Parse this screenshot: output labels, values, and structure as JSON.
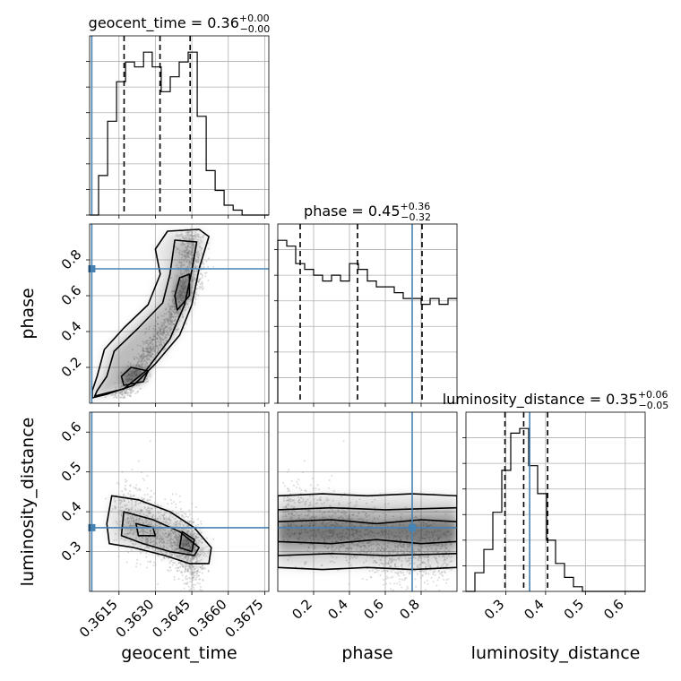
{
  "chart_data": {
    "type": "corner",
    "parameters": [
      "geocent_time",
      "phase",
      "luminosity_distance"
    ],
    "titles": [
      {
        "param": "geocent_time",
        "prefix": "geocent_time = ",
        "value": "0.36",
        "plus": "+0.00",
        "minus": "−0.00"
      },
      {
        "param": "phase",
        "prefix": "phase = ",
        "value": "0.45",
        "plus": "+0.36",
        "minus": "−0.32"
      },
      {
        "param": "luminosity_distance",
        "prefix": "luminosity_distance = ",
        "value": "0.35",
        "plus": "+0.06",
        "minus": "−0.05"
      }
    ],
    "axis_labels": {
      "geocent_time": "geocent_time",
      "phase": "phase",
      "luminosity_distance": "luminosity_distance"
    },
    "ranges": {
      "geocent_time": [
        0.36029,
        0.36767
      ],
      "phase": [
        0.0,
        1.0
      ],
      "luminosity_distance": [
        0.2,
        0.65
      ]
    },
    "ticks": {
      "geocent_time": [
        0.3615,
        0.363,
        0.3645,
        0.366,
        0.3675
      ],
      "phase": [
        0.2,
        0.4,
        0.6,
        0.8
      ],
      "luminosity_distance": [
        0.3,
        0.4,
        0.5,
        0.6
      ]
    },
    "tick_labels": {
      "geocent_time": [
        "0.3615",
        "0.3630",
        "0.3645",
        "0.3660",
        "0.3675"
      ],
      "phase": [
        "0.2",
        "0.4",
        "0.6",
        "0.8"
      ],
      "luminosity_distance": [
        "0.3",
        "0.4",
        "0.5",
        "0.6"
      ]
    },
    "truths": {
      "geocent_time": 0.36038,
      "phase": 0.75,
      "luminosity_distance": 0.36
    },
    "quantiles": {
      "geocent_time": [
        0.36171,
        0.36319,
        0.36443
      ],
      "phase": [
        0.125,
        0.445,
        0.805
      ],
      "luminosity_distance": [
        0.298,
        0.345,
        0.405
      ]
    },
    "histograms": {
      "geocent_time": {
        "edges": [
          0.36029,
          0.36066,
          0.36103,
          0.3614,
          0.36177,
          0.36214,
          0.36251,
          0.36287,
          0.36324,
          0.36361,
          0.36398,
          0.36435,
          0.36472,
          0.36509,
          0.36546,
          0.36583,
          0.3662,
          0.36657,
          0.36694,
          0.36731,
          0.36767
        ],
        "counts": [
          0,
          8,
          19,
          27,
          31,
          30,
          33,
          30,
          25,
          28,
          31,
          33,
          20,
          9,
          5,
          2,
          1,
          0,
          0,
          0
        ]
      },
      "phase": {
        "edges": [
          0.0,
          0.05,
          0.1,
          0.15,
          0.2,
          0.25,
          0.3,
          0.35,
          0.4,
          0.45,
          0.5,
          0.55,
          0.6,
          0.65,
          0.7,
          0.75,
          0.8,
          0.85,
          0.9,
          0.95,
          1.0
        ],
        "counts": [
          28,
          27,
          24,
          23,
          22,
          21,
          22,
          21,
          24,
          23,
          21,
          20,
          20,
          19,
          18,
          18,
          17,
          18,
          17,
          18
        ]
      },
      "luminosity_distance": {
        "edges": [
          0.2,
          0.2225,
          0.245,
          0.2675,
          0.29,
          0.3125,
          0.335,
          0.3575,
          0.38,
          0.4025,
          0.425,
          0.4475,
          0.47,
          0.4925,
          0.515,
          0.5375,
          0.56,
          0.5825,
          0.605,
          0.6275,
          0.65
        ],
        "counts": [
          0,
          4,
          9,
          17,
          26,
          34,
          35,
          27,
          21,
          11,
          6,
          3,
          1,
          0,
          0,
          0,
          0,
          0,
          0,
          0
        ]
      }
    },
    "colors": {
      "truth": "#4682b4",
      "contour": "#000000",
      "hist": "#000000",
      "grid": "#b0b0b0",
      "points": "#9a9a9a"
    },
    "grid": true
  }
}
